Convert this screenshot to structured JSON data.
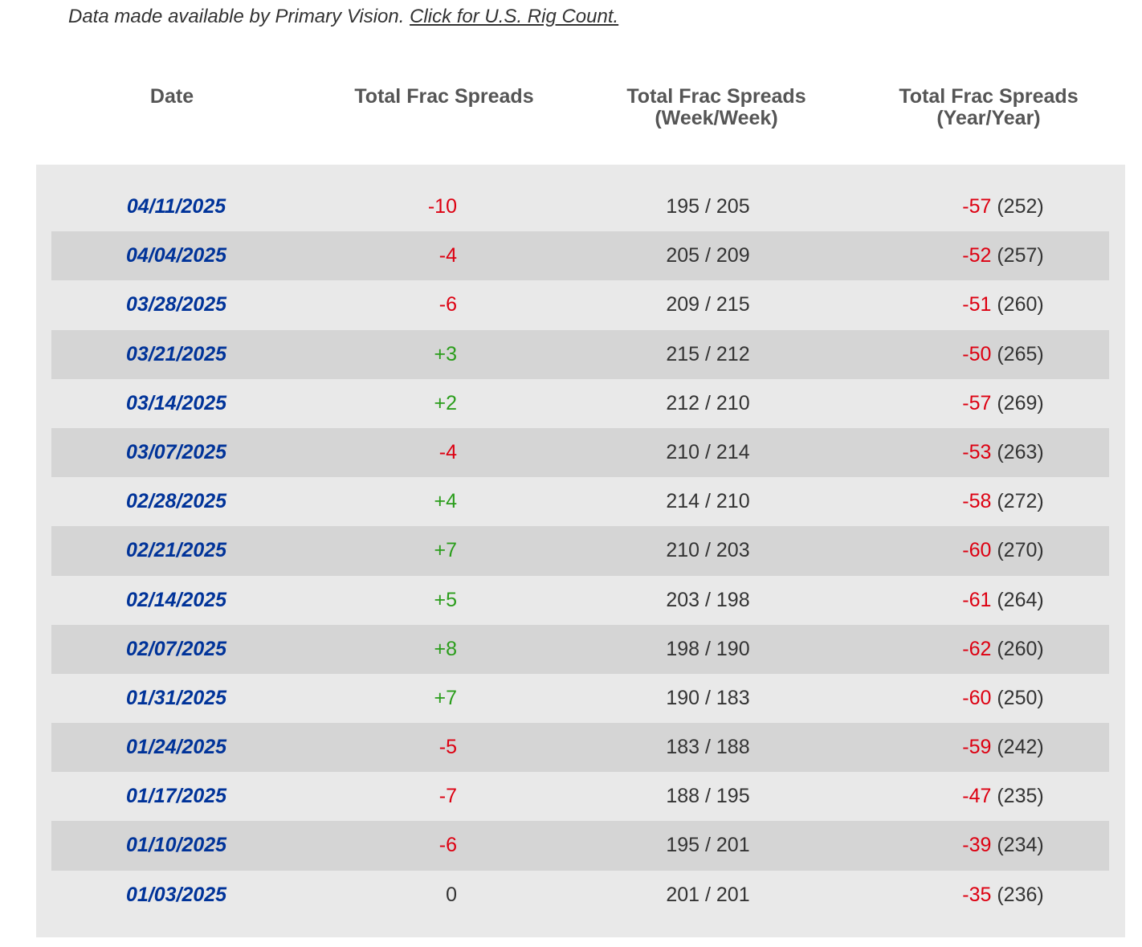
{
  "attribution": {
    "text": "Data made available by Primary Vision. ",
    "link_text": "Click for U.S. Rig Count."
  },
  "headers": {
    "date": "Date",
    "total": "Total Frac Spreads",
    "week_line1": "Total Frac Spreads",
    "week_line2": "(Week/Week)",
    "year_line1": "Total Frac Spreads",
    "year_line2": "(Year/Year)"
  },
  "colors": {
    "date_text": "#003399",
    "negative": "#dd0011",
    "positive": "#2a9d1b",
    "row_shade": "#d5d5d5",
    "table_bg": "#e9e9e9"
  },
  "rows": [
    {
      "date": "04/11/2025",
      "change": "-10",
      "week": "195 / 205",
      "year_change": "-57",
      "year_prev": "(252)"
    },
    {
      "date": "04/04/2025",
      "change": "-4",
      "week": "205 / 209",
      "year_change": "-52",
      "year_prev": "(257)"
    },
    {
      "date": "03/28/2025",
      "change": "-6",
      "week": "209 / 215",
      "year_change": "-51",
      "year_prev": "(260)"
    },
    {
      "date": "03/21/2025",
      "change": "+3",
      "week": "215 / 212",
      "year_change": "-50",
      "year_prev": "(265)"
    },
    {
      "date": "03/14/2025",
      "change": "+2",
      "week": "212 / 210",
      "year_change": "-57",
      "year_prev": "(269)"
    },
    {
      "date": "03/07/2025",
      "change": "-4",
      "week": "210 / 214",
      "year_change": "-53",
      "year_prev": "(263)"
    },
    {
      "date": "02/28/2025",
      "change": "+4",
      "week": "214 / 210",
      "year_change": "-58",
      "year_prev": "(272)"
    },
    {
      "date": "02/21/2025",
      "change": "+7",
      "week": "210 / 203",
      "year_change": "-60",
      "year_prev": "(270)"
    },
    {
      "date": "02/14/2025",
      "change": "+5",
      "week": "203 / 198",
      "year_change": "-61",
      "year_prev": "(264)"
    },
    {
      "date": "02/07/2025",
      "change": "+8",
      "week": "198 / 190",
      "year_change": "-62",
      "year_prev": "(260)"
    },
    {
      "date": "01/31/2025",
      "change": "+7",
      "week": "190 / 183",
      "year_change": "-60",
      "year_prev": "(250)"
    },
    {
      "date": "01/24/2025",
      "change": "-5",
      "week": "183 / 188",
      "year_change": "-59",
      "year_prev": "(242)"
    },
    {
      "date": "01/17/2025",
      "change": "-7",
      "week": "188 / 195",
      "year_change": "-47",
      "year_prev": "(235)"
    },
    {
      "date": "01/10/2025",
      "change": "-6",
      "week": "195 / 201",
      "year_change": "-39",
      "year_prev": "(234)"
    },
    {
      "date": "01/03/2025",
      "change": "0",
      "week": "201 / 201",
      "year_change": "-35",
      "year_prev": "(236)"
    }
  ]
}
